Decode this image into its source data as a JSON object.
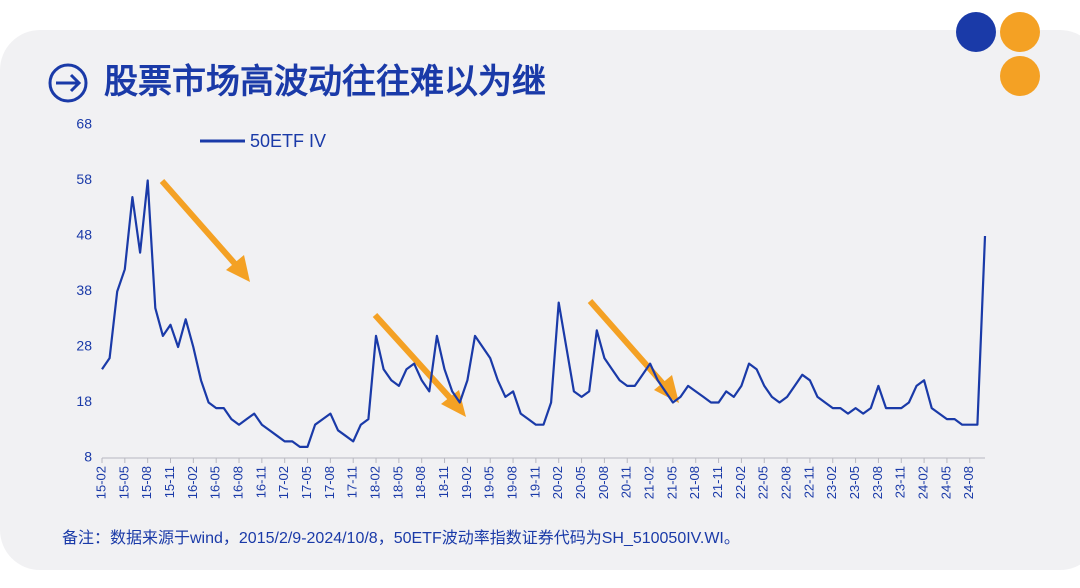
{
  "chart_data": {
    "type": "line",
    "title": "股票市场高波动往往难以为继",
    "note": "备注：数据来源于wind，2015/2/9-2024/10/8，50ETF波动率指数证券代码为SH_510050IV.WI。",
    "categories": [
      "15-02",
      null,
      null,
      "15-05",
      null,
      null,
      "15-08",
      null,
      null,
      "15-11",
      null,
      null,
      "16-02",
      null,
      null,
      "16-05",
      null,
      null,
      "16-08",
      null,
      null,
      "16-11",
      null,
      null,
      "17-02",
      null,
      null,
      "17-05",
      null,
      null,
      "17-08",
      null,
      null,
      "17-11",
      null,
      null,
      "18-02",
      null,
      null,
      "18-05",
      null,
      null,
      "18-08",
      null,
      null,
      "18-11",
      null,
      null,
      "19-02",
      null,
      null,
      "19-05",
      null,
      null,
      "19-08",
      null,
      null,
      "19-11",
      null,
      null,
      "20-02",
      null,
      null,
      "20-05",
      null,
      null,
      "20-08",
      null,
      null,
      "20-11",
      null,
      null,
      "21-02",
      null,
      null,
      "21-05",
      null,
      null,
      "21-08",
      null,
      null,
      "21-11",
      null,
      null,
      "22-02",
      null,
      null,
      "22-05",
      null,
      null,
      "22-08",
      null,
      null,
      "22-11",
      null,
      null,
      "23-02",
      null,
      null,
      "23-05",
      null,
      null,
      "23-08",
      null,
      null,
      "23-11",
      null,
      null,
      "24-02",
      null,
      null,
      "24-05",
      null,
      null,
      "24-08",
      null,
      null
    ],
    "series": [
      {
        "name": "50ETF IV",
        "color": "#1a3aa8",
        "values": [
          24,
          26,
          38,
          42,
          55,
          45,
          58,
          35,
          30,
          32,
          28,
          33,
          28,
          22,
          18,
          17,
          17,
          15,
          14,
          15,
          16,
          14,
          13,
          12,
          11,
          11,
          10,
          10,
          14,
          15,
          16,
          13,
          12,
          11,
          14,
          15,
          30,
          24,
          22,
          21,
          24,
          25,
          22,
          20,
          30,
          24,
          20,
          18,
          22,
          30,
          28,
          26,
          22,
          19,
          20,
          16,
          15,
          14,
          14,
          18,
          36,
          28,
          20,
          19,
          20,
          31,
          26,
          24,
          22,
          21,
          21,
          23,
          25,
          22,
          20,
          18,
          19,
          21,
          20,
          19,
          18,
          18,
          20,
          19,
          21,
          25,
          24,
          21,
          19,
          18,
          19,
          21,
          23,
          22,
          19,
          18,
          17,
          17,
          16,
          17,
          16,
          17,
          21,
          17,
          17,
          17,
          18,
          21,
          22,
          17,
          16,
          15,
          15,
          14,
          14,
          14,
          48
        ]
      }
    ],
    "ylim": [
      8,
      68
    ],
    "yticks": [
      8,
      18,
      28,
      38,
      48,
      58,
      68
    ]
  }
}
